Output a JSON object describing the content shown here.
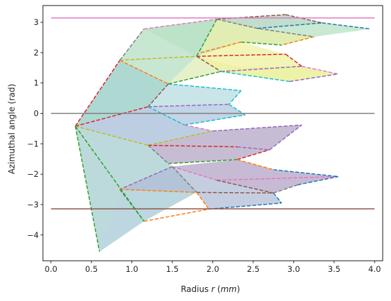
{
  "chart_data": {
    "type": "area",
    "xlabel": "Radius $r$ ($mm$)",
    "xlabel_parts": {
      "prefix": "Radius ",
      "var": "r",
      "unit_open": " (",
      "unit": "mm",
      "unit_close": ")"
    },
    "ylabel": "Azimuthal angle (rad)",
    "xlim": [
      -0.1,
      4.1
    ],
    "ylim": [
      -4.85,
      3.55
    ],
    "xticks": [
      0.0,
      0.5,
      1.0,
      1.5,
      2.0,
      2.5,
      3.0,
      3.5,
      4.0
    ],
    "xtick_labels": [
      "0.0",
      "0.5",
      "1.0",
      "1.5",
      "2.0",
      "2.5",
      "3.0",
      "3.5",
      "4.0"
    ],
    "yticks": [
      -4,
      -3,
      -2,
      -1,
      0,
      1,
      2,
      3
    ],
    "ytick_labels": [
      "−4",
      "−3",
      "−2",
      "−1",
      "0",
      "1",
      "2",
      "3"
    ],
    "grid": false,
    "hlines": [
      {
        "y": 3.1416,
        "xmin": 0.0,
        "xmax": 4.0,
        "color": "#e377c2"
      },
      {
        "y": 0.0,
        "xmin": 0.0,
        "xmax": 4.0,
        "color": "#7f7f7f"
      },
      {
        "y": -3.1416,
        "xmin": 0.0,
        "xmax": 4.0,
        "color": "#8c564b"
      }
    ],
    "polygons": [
      {
        "points": [
          [
            0.3,
            -0.42
          ],
          [
            0.85,
            1.75
          ],
          [
            1.15,
            2.78
          ],
          [
            2.05,
            3.1
          ],
          [
            1.8,
            1.88
          ],
          [
            1.45,
            0.97
          ],
          [
            1.2,
            0.22
          ]
        ],
        "fill": "#b6dfc3"
      },
      {
        "points": [
          [
            0.3,
            -0.42
          ],
          [
            1.2,
            0.22
          ],
          [
            1.65,
            -0.38
          ],
          [
            2.0,
            -0.58
          ],
          [
            1.2,
            -1.05
          ]
        ],
        "fill": "#a7bdd8"
      },
      {
        "points": [
          [
            0.3,
            -0.42
          ],
          [
            1.2,
            -1.05
          ],
          [
            1.5,
            -1.75
          ],
          [
            0.85,
            -2.5
          ],
          [
            0.6,
            -4.55
          ]
        ],
        "fill": "#a5cdcf"
      },
      {
        "points": [
          [
            0.3,
            -0.42
          ],
          [
            0.85,
            1.75
          ],
          [
            1.45,
            0.97
          ],
          [
            1.2,
            0.22
          ]
        ],
        "fill": "#a6d3d1"
      },
      {
        "points": [
          [
            0.85,
            -2.5
          ],
          [
            1.5,
            -1.75
          ],
          [
            1.8,
            -2.6
          ],
          [
            1.15,
            -3.55
          ],
          [
            0.6,
            -4.55
          ]
        ],
        "fill": "#a6c9d5"
      },
      {
        "points": [
          [
            0.85,
            -2.5
          ],
          [
            1.8,
            -2.6
          ],
          [
            1.95,
            -3.15
          ],
          [
            2.85,
            -2.95
          ],
          [
            2.75,
            -2.62
          ],
          [
            2.05,
            -2.2
          ],
          [
            1.5,
            -1.75
          ]
        ],
        "fill": "#b1bed6"
      },
      {
        "points": [
          [
            1.2,
            -1.05
          ],
          [
            1.45,
            -1.65
          ],
          [
            2.3,
            -1.52
          ],
          [
            2.7,
            -1.2
          ],
          [
            3.1,
            -0.38
          ],
          [
            2.0,
            -0.58
          ]
        ],
        "fill": "#b3a7c7"
      },
      {
        "points": [
          [
            1.5,
            -1.75
          ],
          [
            2.3,
            -1.52
          ],
          [
            2.75,
            -1.85
          ],
          [
            3.55,
            -2.08
          ],
          [
            3.05,
            -2.35
          ],
          [
            2.75,
            -2.62
          ],
          [
            2.05,
            -2.2
          ]
        ],
        "fill": "#b4a3c5"
      },
      {
        "points": [
          [
            1.2,
            0.22
          ],
          [
            2.2,
            0.3
          ],
          [
            2.4,
            -0.05
          ],
          [
            1.65,
            -0.38
          ]
        ],
        "fill": "#afc7df"
      },
      {
        "points": [
          [
            1.2,
            0.22
          ],
          [
            1.45,
            0.97
          ],
          [
            2.35,
            0.75
          ],
          [
            2.2,
            0.3
          ]
        ],
        "fill": "#b8dce0"
      },
      {
        "points": [
          [
            1.45,
            0.97
          ],
          [
            2.1,
            1.38
          ],
          [
            2.95,
            1.05
          ],
          [
            3.55,
            1.3
          ],
          [
            3.05,
            1.55
          ],
          [
            2.35,
            1.52
          ],
          [
            1.8,
            1.88
          ]
        ],
        "fill": "#dfecb6"
      },
      {
        "points": [
          [
            1.8,
            1.88
          ],
          [
            2.1,
            1.38
          ],
          [
            2.95,
            1.05
          ],
          [
            3.55,
            1.3
          ],
          [
            3.1,
            1.55
          ],
          [
            2.9,
            1.95
          ],
          [
            2.35,
            2.35
          ],
          [
            2.05,
            2.15
          ]
        ],
        "fill": "#eff19f"
      },
      {
        "points": [
          [
            1.15,
            2.78
          ],
          [
            2.05,
            3.1
          ],
          [
            2.9,
            3.25
          ],
          [
            3.35,
            2.98
          ],
          [
            3.95,
            2.78
          ],
          [
            3.25,
            2.52
          ],
          [
            2.85,
            2.25
          ],
          [
            2.35,
            2.35
          ],
          [
            1.8,
            1.88
          ]
        ],
        "fill": "#b8e1c3"
      },
      {
        "points": [
          [
            2.05,
            3.1
          ],
          [
            2.55,
            2.8
          ],
          [
            3.25,
            2.52
          ],
          [
            2.85,
            2.25
          ],
          [
            2.35,
            2.35
          ],
          [
            1.85,
            2.0
          ]
        ],
        "fill": "#e8eda7"
      },
      {
        "points": [
          [
            2.05,
            3.1
          ],
          [
            2.9,
            3.25
          ],
          [
            3.35,
            2.98
          ],
          [
            2.55,
            2.8
          ]
        ],
        "fill": "#bfd8c8"
      }
    ],
    "segments": [
      {
        "points": [
          [
            0.3,
            -0.42
          ],
          [
            0.85,
            1.75
          ]
        ],
        "color": "#d62728"
      },
      {
        "points": [
          [
            0.85,
            1.75
          ],
          [
            1.15,
            2.78
          ]
        ],
        "color": "#7f7f7f"
      },
      {
        "points": [
          [
            1.15,
            2.78
          ],
          [
            2.05,
            3.1
          ]
        ],
        "color": "#e377c2"
      },
      {
        "points": [
          [
            2.05,
            3.1
          ],
          [
            2.9,
            3.25
          ]
        ],
        "color": "#8c564b"
      },
      {
        "points": [
          [
            2.9,
            3.25
          ],
          [
            3.35,
            2.98
          ]
        ],
        "color": "#8c564b"
      },
      {
        "points": [
          [
            3.35,
            2.98
          ],
          [
            3.95,
            2.78
          ]
        ],
        "color": "#1f77b4"
      },
      {
        "points": [
          [
            2.05,
            3.1
          ],
          [
            2.55,
            2.8
          ],
          [
            3.25,
            2.52
          ]
        ],
        "color": "#7f7f7f"
      },
      {
        "points": [
          [
            2.55,
            2.8
          ],
          [
            3.35,
            2.98
          ]
        ],
        "color": "#1f77b4"
      },
      {
        "points": [
          [
            3.25,
            2.52
          ],
          [
            2.85,
            2.25
          ]
        ],
        "color": "#ff7f0e"
      },
      {
        "points": [
          [
            1.85,
            2.0
          ],
          [
            2.35,
            2.35
          ]
        ],
        "color": "#ff7f0e"
      },
      {
        "points": [
          [
            2.35,
            2.35
          ],
          [
            2.85,
            2.25
          ]
        ],
        "color": "#2ca02c"
      },
      {
        "points": [
          [
            2.05,
            3.1
          ],
          [
            1.8,
            1.88
          ]
        ],
        "color": "#2ca02c"
      },
      {
        "points": [
          [
            0.85,
            1.75
          ],
          [
            1.8,
            1.88
          ]
        ],
        "color": "#bcbd22"
      },
      {
        "points": [
          [
            1.8,
            1.88
          ],
          [
            2.9,
            1.95
          ]
        ],
        "color": "#d62728"
      },
      {
        "points": [
          [
            2.9,
            1.95
          ],
          [
            3.1,
            1.55
          ]
        ],
        "color": "#d62728"
      },
      {
        "points": [
          [
            3.1,
            1.55
          ],
          [
            3.55,
            1.3
          ]
        ],
        "color": "#e377c2"
      },
      {
        "points": [
          [
            1.8,
            1.88
          ],
          [
            2.1,
            1.38
          ]
        ],
        "color": "#8c564b"
      },
      {
        "points": [
          [
            2.1,
            1.38
          ],
          [
            3.1,
            1.55
          ]
        ],
        "color": "#9467bd"
      },
      {
        "points": [
          [
            2.1,
            1.38
          ],
          [
            2.95,
            1.05
          ]
        ],
        "color": "#17becf"
      },
      {
        "points": [
          [
            2.95,
            1.05
          ],
          [
            3.55,
            1.3
          ]
        ],
        "color": "#9467bd"
      },
      {
        "points": [
          [
            0.85,
            1.75
          ],
          [
            1.45,
            0.97
          ]
        ],
        "color": "#ff7f0e"
      },
      {
        "points": [
          [
            1.45,
            0.97
          ],
          [
            2.35,
            0.75
          ]
        ],
        "color": "#17becf"
      },
      {
        "points": [
          [
            1.45,
            0.97
          ],
          [
            1.2,
            0.22
          ]
        ],
        "color": "#8c564b"
      },
      {
        "points": [
          [
            1.45,
            0.97
          ],
          [
            2.1,
            1.38
          ]
        ],
        "color": "#2ca02c"
      },
      {
        "points": [
          [
            2.35,
            0.75
          ],
          [
            2.2,
            0.3
          ]
        ],
        "color": "#17becf"
      },
      {
        "points": [
          [
            1.2,
            0.22
          ],
          [
            2.2,
            0.3
          ]
        ],
        "color": "#9467bd"
      },
      {
        "points": [
          [
            2.2,
            0.3
          ],
          [
            2.4,
            -0.05
          ]
        ],
        "color": "#17becf"
      },
      {
        "points": [
          [
            0.3,
            -0.42
          ],
          [
            1.2,
            0.22
          ]
        ],
        "color": "#d62728"
      },
      {
        "points": [
          [
            1.2,
            0.22
          ],
          [
            1.65,
            -0.38
          ]
        ],
        "color": "#17becf"
      },
      {
        "points": [
          [
            1.65,
            -0.38
          ],
          [
            2.4,
            -0.05
          ]
        ],
        "color": "#17becf"
      },
      {
        "points": [
          [
            1.65,
            -0.38
          ],
          [
            2.0,
            -0.58
          ]
        ],
        "color": "#e377c2"
      },
      {
        "points": [
          [
            2.0,
            -0.58
          ],
          [
            3.1,
            -0.38
          ]
        ],
        "color": "#9467bd"
      },
      {
        "points": [
          [
            0.3,
            -0.42
          ],
          [
            1.2,
            -1.05
          ]
        ],
        "color": "#bcbd22"
      },
      {
        "points": [
          [
            1.2,
            -1.05
          ],
          [
            2.0,
            -0.58
          ]
        ],
        "color": "#bcbd22"
      },
      {
        "points": [
          [
            1.2,
            -1.05
          ],
          [
            2.3,
            -1.1
          ]
        ],
        "color": "#d62728"
      },
      {
        "points": [
          [
            2.3,
            -1.1
          ],
          [
            2.7,
            -1.2
          ]
        ],
        "color": "#9467bd"
      },
      {
        "points": [
          [
            2.7,
            -1.2
          ],
          [
            3.1,
            -0.38
          ]
        ],
        "color": "#9467bd"
      },
      {
        "points": [
          [
            1.2,
            -1.05
          ],
          [
            1.45,
            -1.65
          ]
        ],
        "color": "#7f7f7f"
      },
      {
        "points": [
          [
            1.45,
            -1.65
          ],
          [
            2.3,
            -1.52
          ]
        ],
        "color": "#2ca02c"
      },
      {
        "points": [
          [
            2.3,
            -1.52
          ],
          [
            2.7,
            -1.2
          ]
        ],
        "color": "#d62728"
      },
      {
        "points": [
          [
            1.5,
            -1.75
          ],
          [
            2.05,
            -2.2
          ]
        ],
        "color": "#e377c2"
      },
      {
        "points": [
          [
            2.05,
            -2.2
          ],
          [
            3.55,
            -2.08
          ]
        ],
        "color": "#e377c2"
      },
      {
        "points": [
          [
            2.3,
            -1.52
          ],
          [
            2.75,
            -1.85
          ]
        ],
        "color": "#ff7f0e"
      },
      {
        "points": [
          [
            2.75,
            -1.85
          ],
          [
            3.55,
            -2.08
          ]
        ],
        "color": "#1f77b4"
      },
      {
        "points": [
          [
            2.05,
            -2.2
          ],
          [
            2.75,
            -2.62
          ]
        ],
        "color": "#8c564b"
      },
      {
        "points": [
          [
            2.75,
            -2.62
          ],
          [
            3.05,
            -2.35
          ]
        ],
        "color": "#7f7f7f"
      },
      {
        "points": [
          [
            3.05,
            -2.35
          ],
          [
            3.55,
            -2.08
          ]
        ],
        "color": "#1f77b4"
      },
      {
        "points": [
          [
            2.75,
            -2.62
          ],
          [
            2.85,
            -2.95
          ]
        ],
        "color": "#1f77b4"
      },
      {
        "points": [
          [
            0.3,
            -0.42
          ],
          [
            0.6,
            -4.55
          ]
        ],
        "color": "#2ca02c"
      },
      {
        "points": [
          [
            0.3,
            -0.42
          ],
          [
            1.15,
            -3.55
          ]
        ],
        "color": "#2ca02c"
      },
      {
        "points": [
          [
            1.5,
            -1.75
          ],
          [
            0.85,
            -2.5
          ]
        ],
        "color": "#9467bd"
      },
      {
        "points": [
          [
            0.85,
            -2.5
          ],
          [
            1.8,
            -2.6
          ]
        ],
        "color": "#ff7f0e"
      },
      {
        "points": [
          [
            1.8,
            -2.6
          ],
          [
            2.75,
            -2.62
          ]
        ],
        "color": "#8c564b"
      },
      {
        "points": [
          [
            1.8,
            -2.6
          ],
          [
            1.95,
            -3.15
          ]
        ],
        "color": "#ff7f0e"
      },
      {
        "points": [
          [
            1.95,
            -3.15
          ],
          [
            2.85,
            -2.95
          ]
        ],
        "color": "#1f77b4"
      },
      {
        "points": [
          [
            1.15,
            -3.55
          ],
          [
            1.95,
            -3.15
          ]
        ],
        "color": "#ff7f0e"
      },
      {
        "points": [
          [
            0.85,
            -2.5
          ],
          [
            1.15,
            -3.55
          ]
        ],
        "color": "#2ca02c"
      },
      {
        "points": [
          [
            1.5,
            -1.75
          ],
          [
            1.8,
            -2.6
          ]
        ],
        "color": "#7f7f7f"
      }
    ]
  }
}
